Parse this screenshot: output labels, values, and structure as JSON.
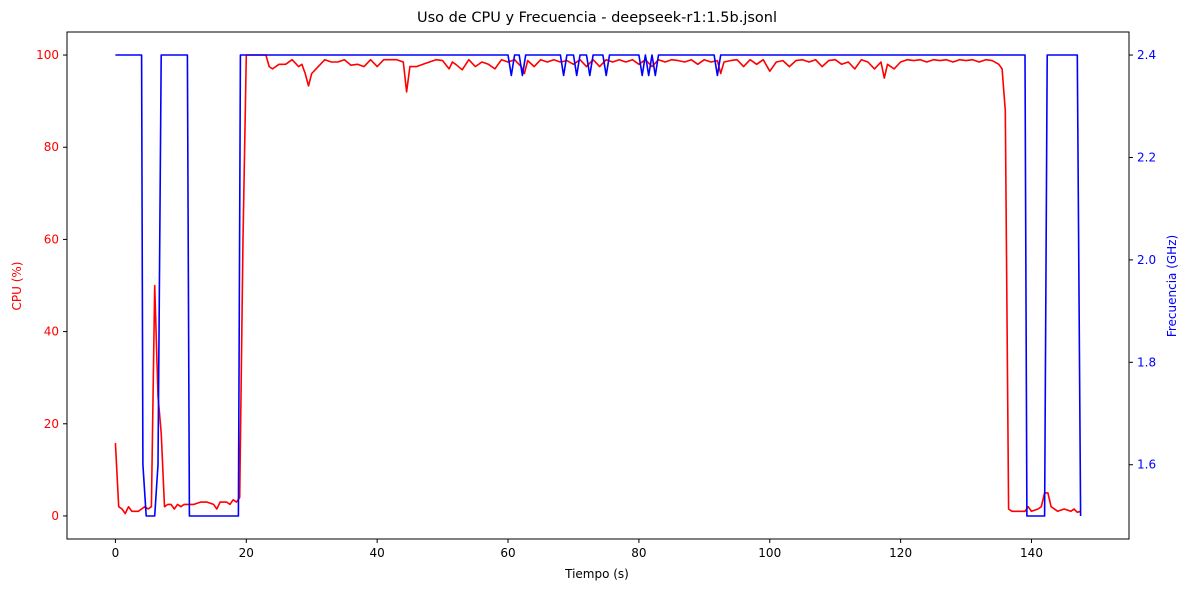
{
  "chart_data": {
    "type": "line",
    "title": "Uso de CPU y Frecuencia - deepseek-r1:1.5b.jsonl",
    "xlabel": "Tiempo (s)",
    "ylabel_left": "CPU (%)",
    "ylabel_right": "Frecuencia (GHz)",
    "xlim": [
      -7.4,
      154.9
    ],
    "ylim_left": [
      -5,
      105
    ],
    "ylim_right": [
      1.455,
      2.445
    ],
    "xticks": [
      0,
      20,
      40,
      60,
      80,
      100,
      120,
      140
    ],
    "yticks_left": [
      0,
      20,
      40,
      60,
      80,
      100
    ],
    "yticks_right": [
      1.6,
      1.8,
      2.0,
      2.2,
      2.4
    ],
    "grid": false,
    "legend": "none",
    "colors": {
      "cpu": "#ff0000",
      "freq": "#0000ff"
    },
    "series": [
      {
        "axis": "left",
        "color": "#ff0000",
        "points": [
          [
            0,
            15.8
          ],
          [
            0.5,
            2
          ],
          [
            1,
            1.5
          ],
          [
            1.5,
            0.5
          ],
          [
            2,
            2
          ],
          [
            2.5,
            1
          ],
          [
            3,
            1
          ],
          [
            3.5,
            1
          ],
          [
            4,
            1.5
          ],
          [
            4.5,
            2
          ],
          [
            5,
            1.5
          ],
          [
            5.5,
            2
          ],
          [
            6,
            50
          ],
          [
            6.5,
            26
          ],
          [
            7,
            18
          ],
          [
            7.5,
            2
          ],
          [
            8,
            2.5
          ],
          [
            8.5,
            2.5
          ],
          [
            9,
            1.5
          ],
          [
            9.5,
            2.5
          ],
          [
            10,
            2
          ],
          [
            10.5,
            2.5
          ],
          [
            11,
            2.5
          ],
          [
            12,
            2.5
          ],
          [
            13,
            3
          ],
          [
            14,
            3
          ],
          [
            15,
            2.5
          ],
          [
            15.5,
            1.5
          ],
          [
            16,
            3
          ],
          [
            17,
            3
          ],
          [
            17.5,
            2.5
          ],
          [
            18,
            3.5
          ],
          [
            18.5,
            3
          ],
          [
            19,
            4
          ],
          [
            19.5,
            60
          ],
          [
            20,
            100
          ],
          [
            21,
            100
          ],
          [
            22,
            100
          ],
          [
            23,
            100
          ],
          [
            23.5,
            97.5
          ],
          [
            24,
            97
          ],
          [
            25,
            98
          ],
          [
            26,
            98
          ],
          [
            27,
            99
          ],
          [
            28,
            97.5
          ],
          [
            28.5,
            98
          ],
          [
            29,
            96
          ],
          [
            29.5,
            93.3
          ],
          [
            30,
            96
          ],
          [
            31,
            97.5
          ],
          [
            32,
            99
          ],
          [
            33,
            98.5
          ],
          [
            34,
            98.5
          ],
          [
            35,
            99
          ],
          [
            36,
            97.8
          ],
          [
            37,
            98
          ],
          [
            38,
            97.5
          ],
          [
            39,
            99
          ],
          [
            40,
            97.5
          ],
          [
            41,
            99
          ],
          [
            42,
            99
          ],
          [
            43,
            99
          ],
          [
            44,
            98.5
          ],
          [
            44.5,
            92
          ],
          [
            45,
            97.5
          ],
          [
            46,
            97.5
          ],
          [
            47,
            98
          ],
          [
            48,
            98.5
          ],
          [
            49,
            99
          ],
          [
            50,
            98.8
          ],
          [
            51,
            97
          ],
          [
            51.5,
            98.5
          ],
          [
            52,
            98
          ],
          [
            53,
            96.8
          ],
          [
            54,
            99
          ],
          [
            55,
            97.5
          ],
          [
            56,
            98.5
          ],
          [
            57,
            98
          ],
          [
            58,
            97
          ],
          [
            59,
            99
          ],
          [
            60,
            98.5
          ],
          [
            61,
            99
          ],
          [
            62,
            97.5
          ],
          [
            62.5,
            96
          ],
          [
            63,
            98.8
          ],
          [
            64,
            97.5
          ],
          [
            65,
            99
          ],
          [
            66,
            98.5
          ],
          [
            67,
            99
          ],
          [
            68,
            98.5
          ],
          [
            69,
            98.8
          ],
          [
            70,
            98
          ],
          [
            71,
            99
          ],
          [
            72,
            97.5
          ],
          [
            73,
            99
          ],
          [
            74,
            97.5
          ],
          [
            75,
            99
          ],
          [
            76,
            98.5
          ],
          [
            77,
            99
          ],
          [
            78,
            98.5
          ],
          [
            79,
            99
          ],
          [
            80,
            98
          ],
          [
            81,
            99
          ],
          [
            82,
            97.5
          ],
          [
            83,
            99
          ],
          [
            84,
            98.5
          ],
          [
            85,
            99
          ],
          [
            86,
            98.8
          ],
          [
            87,
            98.5
          ],
          [
            88,
            99
          ],
          [
            89,
            98
          ],
          [
            90,
            99
          ],
          [
            91,
            98.5
          ],
          [
            92,
            98.8
          ],
          [
            92.5,
            96
          ],
          [
            93,
            98.5
          ],
          [
            94,
            98.8
          ],
          [
            95,
            99
          ],
          [
            96,
            97.5
          ],
          [
            97,
            99
          ],
          [
            98,
            98
          ],
          [
            99,
            99
          ],
          [
            100,
            96.5
          ],
          [
            101,
            98.5
          ],
          [
            102,
            98.8
          ],
          [
            103,
            97.5
          ],
          [
            104,
            98.8
          ],
          [
            105,
            99
          ],
          [
            106,
            98.5
          ],
          [
            107,
            99
          ],
          [
            108,
            97.5
          ],
          [
            109,
            98.8
          ],
          [
            110,
            99
          ],
          [
            111,
            98
          ],
          [
            112,
            98.5
          ],
          [
            113,
            97
          ],
          [
            114,
            99
          ],
          [
            115,
            98.5
          ],
          [
            116,
            97
          ],
          [
            117,
            98.5
          ],
          [
            117.5,
            95
          ],
          [
            118,
            98
          ],
          [
            119,
            97
          ],
          [
            120,
            98.5
          ],
          [
            121,
            99
          ],
          [
            122,
            98.8
          ],
          [
            123,
            99
          ],
          [
            124,
            98.5
          ],
          [
            125,
            99
          ],
          [
            126,
            98.8
          ],
          [
            127,
            99
          ],
          [
            128,
            98.5
          ],
          [
            129,
            99
          ],
          [
            130,
            98.8
          ],
          [
            131,
            99
          ],
          [
            132,
            98.5
          ],
          [
            133,
            99
          ],
          [
            134,
            98.8
          ],
          [
            135,
            98
          ],
          [
            135.5,
            97
          ],
          [
            136,
            88
          ],
          [
            136.5,
            1.5
          ],
          [
            137,
            1
          ],
          [
            138,
            1
          ],
          [
            139,
            1
          ],
          [
            139.5,
            2
          ],
          [
            140,
            1
          ],
          [
            141,
            1.5
          ],
          [
            141.5,
            2
          ],
          [
            142,
            5
          ],
          [
            142.5,
            5
          ],
          [
            143,
            2
          ],
          [
            144,
            1
          ],
          [
            145,
            1.5
          ],
          [
            146,
            1
          ],
          [
            146.5,
            1.5
          ],
          [
            147,
            0.8
          ],
          [
            147.5,
            1
          ]
        ]
      },
      {
        "axis": "right",
        "color": "#0000ff",
        "points": [
          [
            0,
            2.4
          ],
          [
            4,
            2.4
          ],
          [
            4.2,
            1.6
          ],
          [
            4.7,
            1.5
          ],
          [
            6,
            1.5
          ],
          [
            6.5,
            1.6
          ],
          [
            7,
            2.4
          ],
          [
            11,
            2.4
          ],
          [
            11.3,
            1.5
          ],
          [
            18.8,
            1.5
          ],
          [
            19.1,
            2.4
          ],
          [
            60,
            2.4
          ],
          [
            60.5,
            2.36
          ],
          [
            61,
            2.4
          ],
          [
            61.7,
            2.4
          ],
          [
            62.2,
            2.36
          ],
          [
            62.7,
            2.4
          ],
          [
            68,
            2.4
          ],
          [
            68.5,
            2.36
          ],
          [
            69,
            2.4
          ],
          [
            70,
            2.4
          ],
          [
            70.5,
            2.36
          ],
          [
            71,
            2.4
          ],
          [
            72,
            2.4
          ],
          [
            72.5,
            2.36
          ],
          [
            73,
            2.4
          ],
          [
            74.5,
            2.4
          ],
          [
            75,
            2.36
          ],
          [
            75.5,
            2.4
          ],
          [
            80,
            2.4
          ],
          [
            80.5,
            2.36
          ],
          [
            81,
            2.4
          ],
          [
            81.5,
            2.36
          ],
          [
            82,
            2.4
          ],
          [
            82.5,
            2.36
          ],
          [
            83,
            2.4
          ],
          [
            91.5,
            2.4
          ],
          [
            92,
            2.36
          ],
          [
            92.5,
            2.4
          ],
          [
            139,
            2.4
          ],
          [
            139.3,
            1.5
          ],
          [
            142,
            1.5
          ],
          [
            142.4,
            2.4
          ],
          [
            147,
            2.4
          ],
          [
            147.5,
            1.5
          ]
        ]
      }
    ]
  }
}
